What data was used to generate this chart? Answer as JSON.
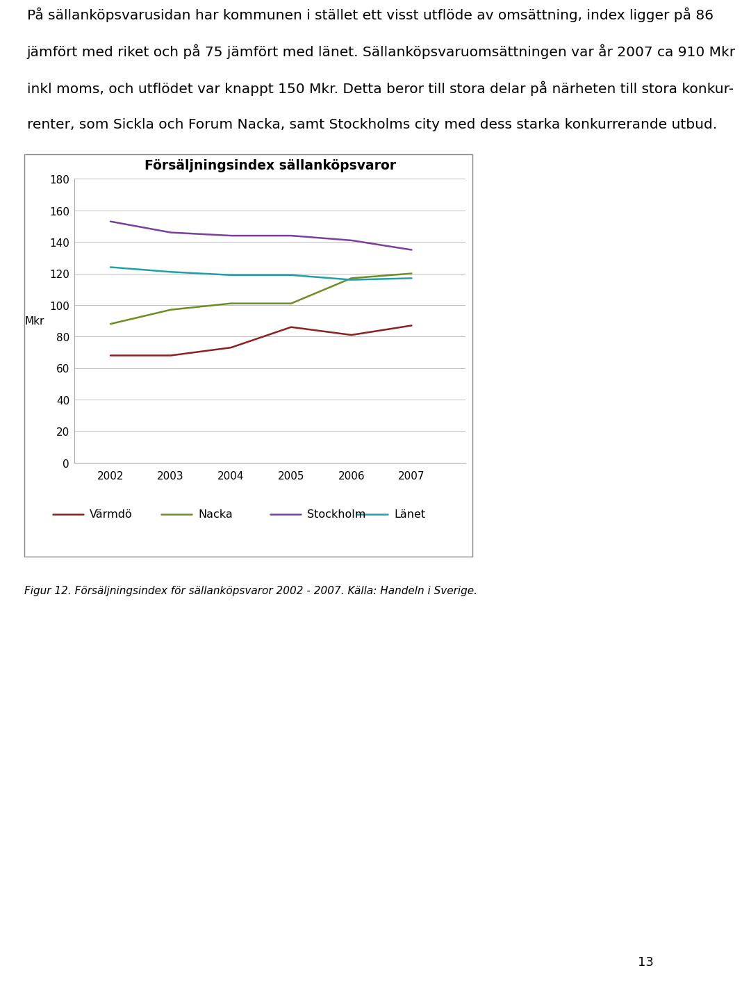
{
  "title": "Försäljningsindex sällanköpsvaror",
  "ylabel": "Mkr",
  "years": [
    2002,
    2003,
    2004,
    2005,
    2006,
    2007
  ],
  "series_order": [
    "Värmdö",
    "Nacka",
    "Stockholm",
    "Länet"
  ],
  "series": {
    "Värmdö": {
      "values": [
        68,
        68,
        73,
        86,
        81,
        87
      ],
      "color": "#8B2020"
    },
    "Nacka": {
      "values": [
        88,
        97,
        101,
        101,
        117,
        120
      ],
      "color": "#6B8E23"
    },
    "Stockholm": {
      "values": [
        153,
        146,
        144,
        144,
        141,
        135
      ],
      "color": "#7B3F9E"
    },
    "Länet": {
      "values": [
        124,
        121,
        119,
        119,
        116,
        117
      ],
      "color": "#20A0AA"
    }
  },
  "ylim": [
    0,
    180
  ],
  "yticks": [
    0,
    20,
    40,
    60,
    80,
    100,
    120,
    140,
    160,
    180
  ],
  "background_color": "#ffffff",
  "chart_bg": "#ffffff",
  "grid_color": "#c0c0c0",
  "text_color": "#000000",
  "body_text": "På sällanköpsvarusidan har kommunen i stället ett visst utflöde av omsättning, index ligger på 86 jämfört med riket och på 75 jämfört med länet. Sällanköpsvaruomsättningen var år 2007 ca 910 Mkr inkl moms, och utflödet var knappt 150 Mkr. Detta beror till stora delar på närheten till stora konkurrenter, som Sickla och Forum Nacka, samt Stockholms city med dess starka konkurrerande utbud.",
  "caption": "Figur 12. Försäljningsindex för sällanköpsvaror 2002 - 2007. Källa: Handeln i Sverige.",
  "page_number": "13",
  "line_width": 1.8,
  "body_fontsize": 14.5,
  "title_fontsize": 13.5,
  "tick_fontsize": 11,
  "legend_fontsize": 11.5,
  "caption_fontsize": 11
}
